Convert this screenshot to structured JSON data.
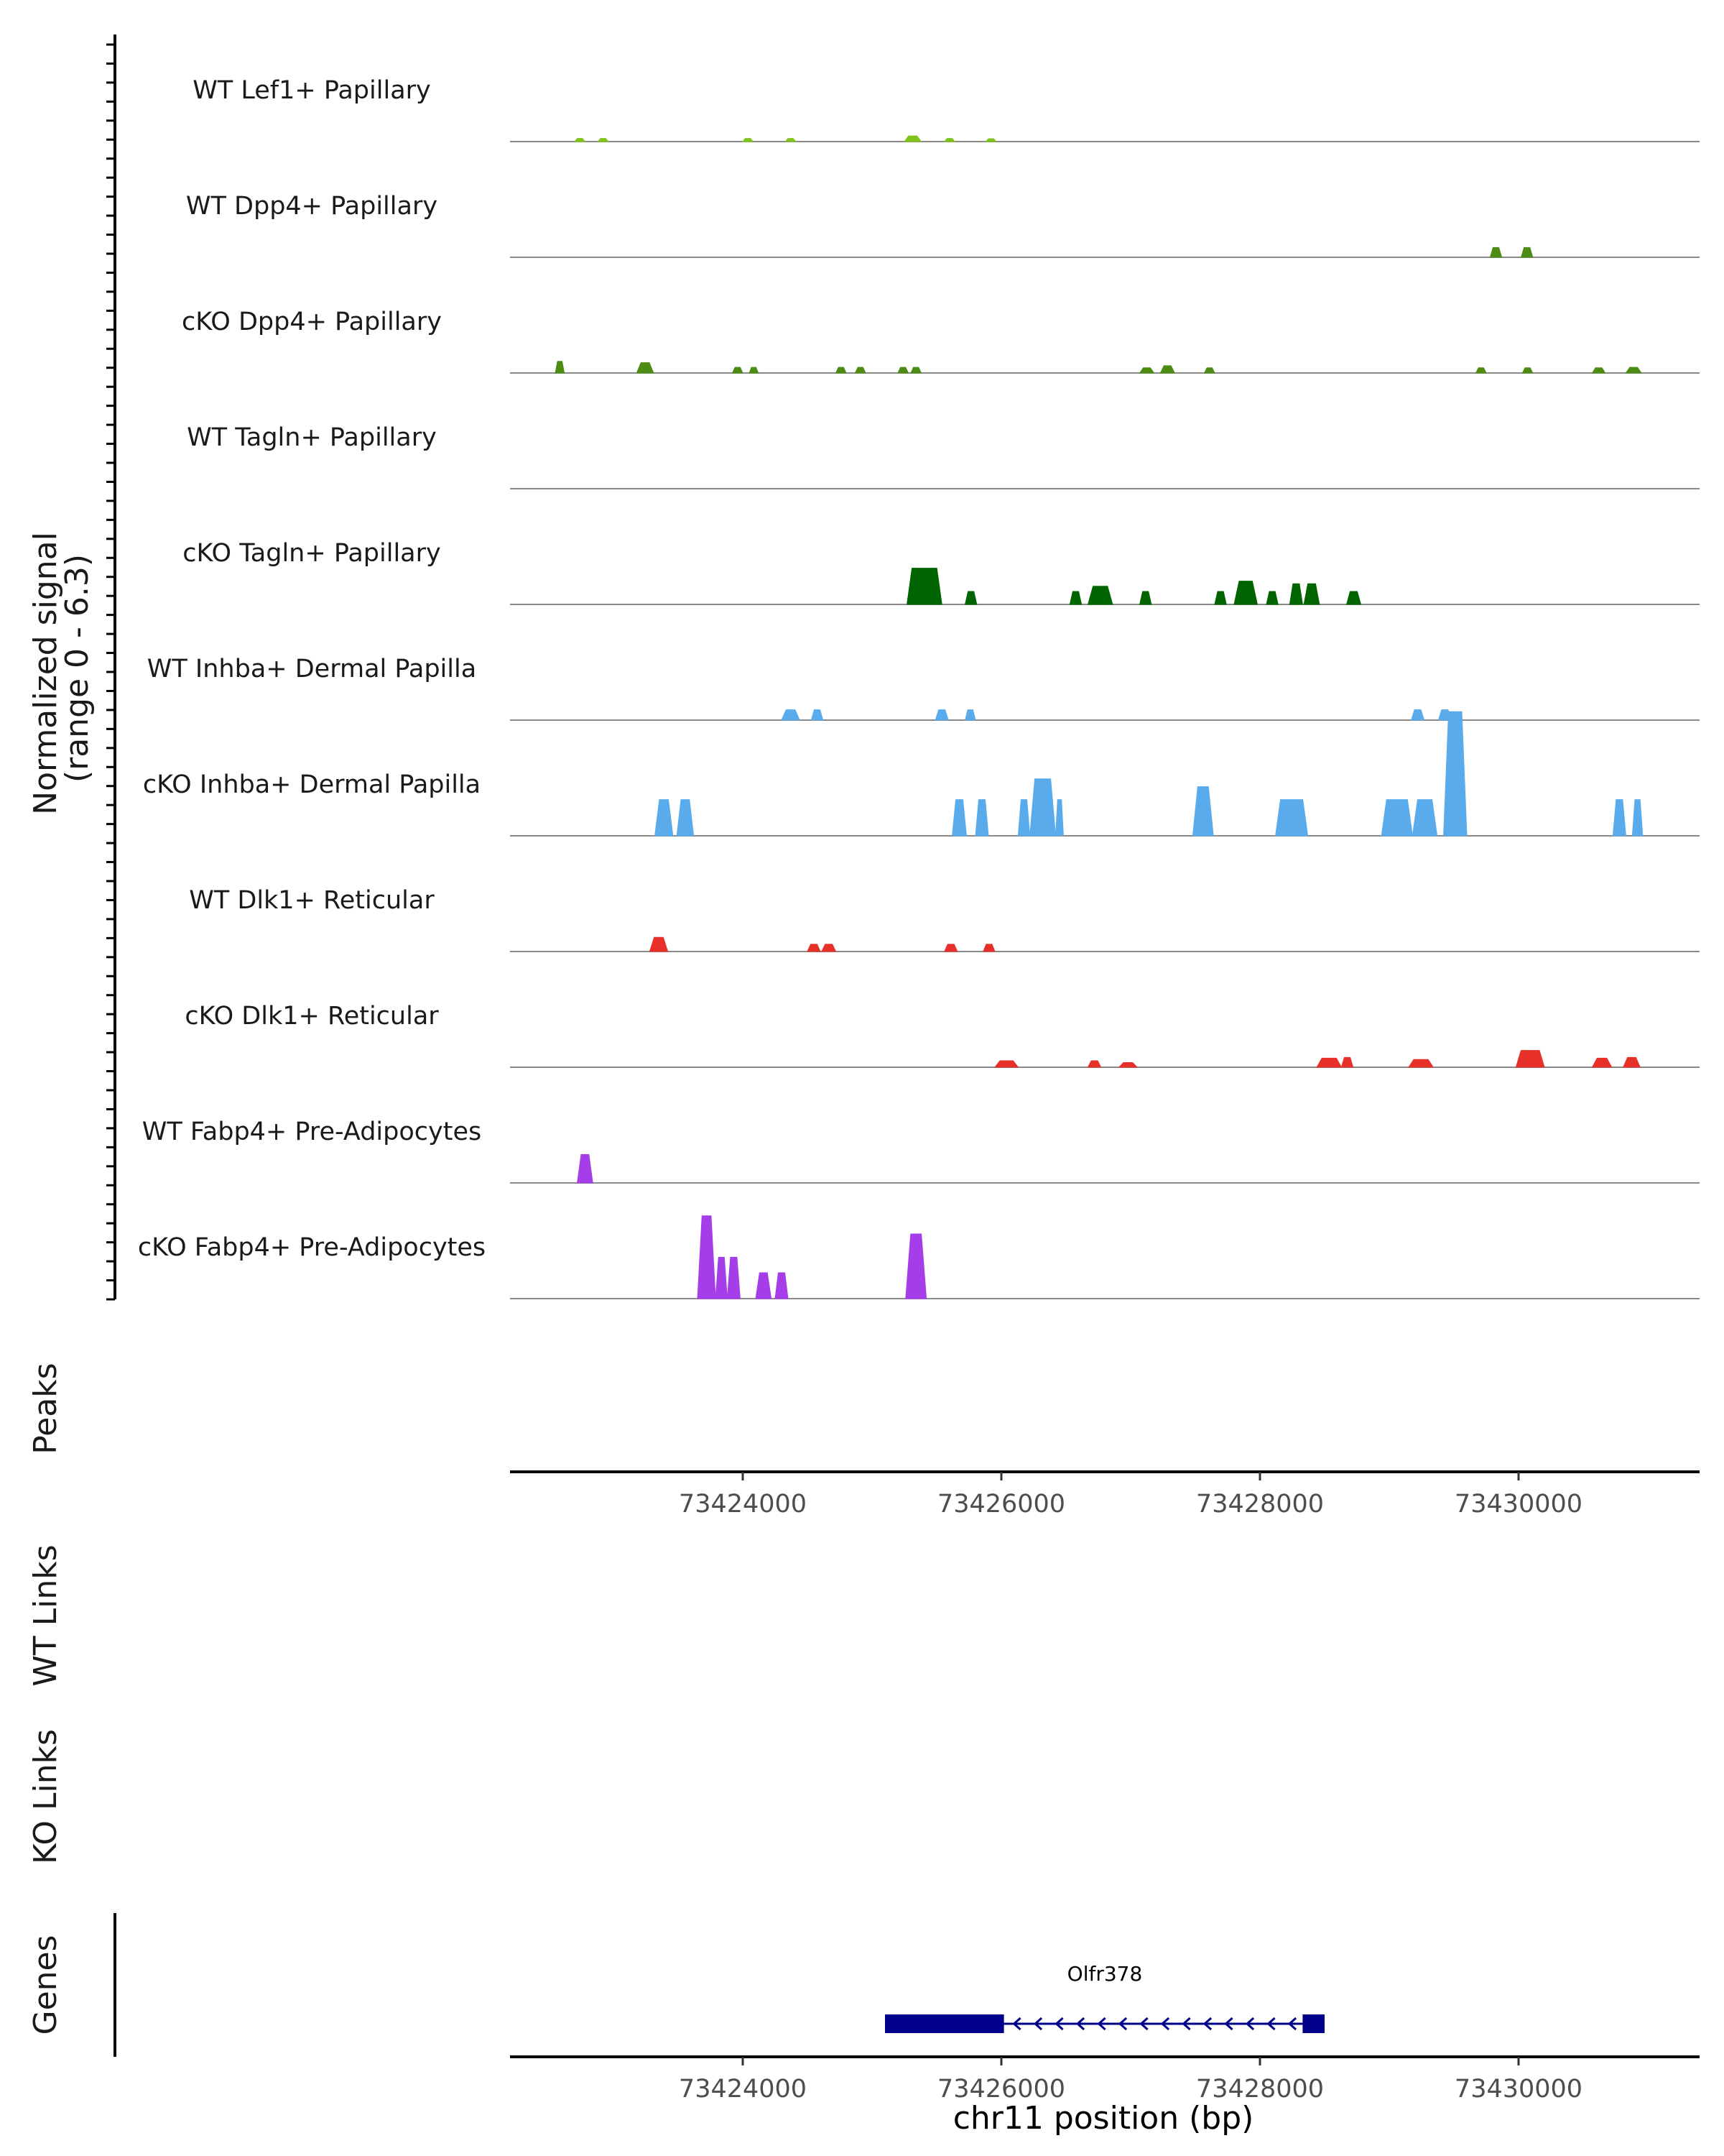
{
  "chart_data": {
    "type": "area",
    "title": "",
    "xlabel": "chr11 position (bp)",
    "xlim": [
      73422200,
      73431400
    ],
    "x_ticks": [
      73424000,
      73426000,
      73428000,
      73430000
    ],
    "x_tick_labels": [
      "73424000",
      "73426000",
      "73428000",
      "73430000"
    ],
    "ylabel_line1": "Normalized signal",
    "ylabel_line2": "(range 0 - 6.3)",
    "ylim": [
      0,
      6.3
    ],
    "track_labels": {
      "peaks": "Peaks",
      "wt_links": "WT Links",
      "ko_links": "KO Links",
      "genes": "Genes"
    },
    "series": [
      {
        "name": "WT Lef1+ Papillary",
        "color": "#7fc31c",
        "peaks": [
          [
            73422700,
            73422780,
            0.12
          ],
          [
            73422880,
            73422960,
            0.12
          ],
          [
            73424000,
            73424080,
            0.12
          ],
          [
            73424330,
            73424410,
            0.12
          ],
          [
            73425250,
            73425380,
            0.22
          ],
          [
            73425560,
            73425640,
            0.12
          ],
          [
            73425880,
            73425960,
            0.1
          ]
        ]
      },
      {
        "name": "WT Dpp4+ Papillary",
        "color": "#4d8c14",
        "peaks": [
          [
            73429780,
            73429870,
            0.38
          ],
          [
            73430020,
            73430110,
            0.38
          ]
        ]
      },
      {
        "name": "cKO Dpp4+ Papillary",
        "color": "#4d8c14",
        "peaks": [
          [
            73422550,
            73422620,
            0.45
          ],
          [
            73423180,
            73423310,
            0.4
          ],
          [
            73423920,
            73424000,
            0.22
          ],
          [
            73424050,
            73424120,
            0.22
          ],
          [
            73424720,
            73424800,
            0.22
          ],
          [
            73424870,
            73424950,
            0.22
          ],
          [
            73425200,
            73425280,
            0.22
          ],
          [
            73425300,
            73425380,
            0.22
          ],
          [
            73427070,
            73427180,
            0.2
          ],
          [
            73427230,
            73427340,
            0.28
          ],
          [
            73427570,
            73427650,
            0.2
          ],
          [
            73429670,
            73429750,
            0.2
          ],
          [
            73430030,
            73430110,
            0.2
          ],
          [
            73430570,
            73430670,
            0.2
          ],
          [
            73430830,
            73430950,
            0.22
          ]
        ]
      },
      {
        "name": "WT Tagln+ Papillary",
        "color": "#006400",
        "peaks": []
      },
      {
        "name": "cKO Tagln+ Papillary",
        "color": "#006400",
        "peaks": [
          [
            73425270,
            73425540,
            1.4
          ],
          [
            73425720,
            73425810,
            0.5
          ],
          [
            73426530,
            73426620,
            0.5
          ],
          [
            73426670,
            73426860,
            0.7
          ],
          [
            73427070,
            73427160,
            0.5
          ],
          [
            73427650,
            73427740,
            0.5
          ],
          [
            73427800,
            73427980,
            0.9
          ],
          [
            73428050,
            73428140,
            0.5
          ],
          [
            73428230,
            73428330,
            0.8
          ],
          [
            73428340,
            73428460,
            0.8
          ],
          [
            73428670,
            73428780,
            0.5
          ]
        ]
      },
      {
        "name": "WT Inhba+ Dermal Papilla",
        "color": "#5aabeb",
        "peaks": [
          [
            73424300,
            73424440,
            0.4
          ],
          [
            73424530,
            73424620,
            0.4
          ],
          [
            73425490,
            73425590,
            0.4
          ],
          [
            73425720,
            73425800,
            0.4
          ],
          [
            73429170,
            73429270,
            0.4
          ],
          [
            73429380,
            73429480,
            0.4
          ]
        ]
      },
      {
        "name": "cKO Inhba+ Dermal Papilla",
        "color": "#5aabeb",
        "peaks": [
          [
            73423320,
            73423460,
            1.4
          ],
          [
            73423490,
            73423620,
            1.4
          ],
          [
            73425620,
            73425730,
            1.4
          ],
          [
            73425800,
            73425900,
            1.4
          ],
          [
            73426130,
            73426220,
            1.4
          ],
          [
            73426220,
            73426420,
            2.2
          ],
          [
            73426420,
            73426480,
            1.4
          ],
          [
            73427480,
            73427640,
            1.9
          ],
          [
            73428120,
            73428370,
            1.4
          ],
          [
            73428940,
            73429180,
            1.4
          ],
          [
            73429180,
            73429370,
            1.4
          ],
          [
            73429420,
            73429600,
            4.8
          ],
          [
            73430730,
            73430830,
            1.4
          ],
          [
            73430880,
            73430960,
            1.4
          ]
        ]
      },
      {
        "name": "WT Dlk1+ Reticular",
        "color": "#e8302a",
        "peaks": [
          [
            73423280,
            73423420,
            0.55
          ],
          [
            73424500,
            73424600,
            0.28
          ],
          [
            73424610,
            73424720,
            0.28
          ],
          [
            73425560,
            73425660,
            0.28
          ],
          [
            73425860,
            73425950,
            0.28
          ]
        ]
      },
      {
        "name": "cKO Dlk1+ Reticular",
        "color": "#e8302a",
        "peaks": [
          [
            73425950,
            73426130,
            0.25
          ],
          [
            73426670,
            73426770,
            0.25
          ],
          [
            73426910,
            73427050,
            0.18
          ],
          [
            73428440,
            73428630,
            0.35
          ],
          [
            73428630,
            73428720,
            0.38
          ],
          [
            73429150,
            73429340,
            0.3
          ],
          [
            73429980,
            73430200,
            0.65
          ],
          [
            73430570,
            73430720,
            0.35
          ],
          [
            73430810,
            73430940,
            0.38
          ]
        ]
      },
      {
        "name": "WT Fabp4+ Pre-Adipocytes",
        "color": "#a53ee8",
        "peaks": [
          [
            73422720,
            73422840,
            1.1
          ]
        ]
      },
      {
        "name": "cKO Fabp4+ Pre-Adipocytes",
        "color": "#a53ee8",
        "peaks": [
          [
            73423650,
            73423790,
            3.2
          ],
          [
            73423790,
            73423880,
            1.6
          ],
          [
            73423880,
            73423980,
            1.6
          ],
          [
            73424100,
            73424220,
            1.0
          ],
          [
            73424250,
            73424350,
            1.0
          ],
          [
            73425260,
            73425420,
            2.5
          ]
        ]
      }
    ],
    "genes": [
      {
        "name": "Olfr378",
        "start": 73425100,
        "end": 73428500,
        "strand": "-",
        "exons": [
          [
            73425100,
            73426020
          ],
          [
            73428330,
            73428500
          ]
        ]
      }
    ]
  }
}
